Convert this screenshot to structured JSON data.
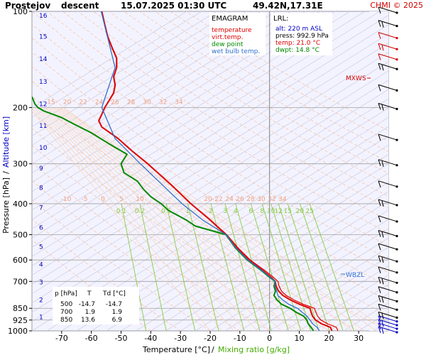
{
  "header": {
    "station": "Prostejov",
    "mode": "descent",
    "datetime": "15.07.2025 01:30 UTC",
    "coords": "49.42N,17.31E",
    "copyright": "CHMI © 2025"
  },
  "legend": {
    "title": "EMAGRAM",
    "items": [
      {
        "label": "temperature",
        "color": "#e00000"
      },
      {
        "label": "virt.temp.",
        "color": "#e00000"
      },
      {
        "label": "dew point",
        "color": "#008800"
      },
      {
        "label": "wet bulb temp.",
        "color": "#3070d0"
      }
    ]
  },
  "lrl": {
    "title": "LRL:",
    "alt": "alt: 220 m ASL",
    "press": "press: 992.9 hPa",
    "temp": "temp: 21.0 °C",
    "dwpt": "dwpt: 14.8 °C"
  },
  "level_table": {
    "headers": [
      "p [hPa]",
      "T",
      "Td [°C]"
    ],
    "rows": [
      [
        "500",
        "-14.7",
        "-14.7"
      ],
      [
        "700",
        "1.9",
        "1.9"
      ],
      [
        "850",
        "13.6",
        "6.9"
      ]
    ]
  },
  "markers": {
    "mxws": "MXWS",
    "wbzl": "WBZL"
  },
  "chart_data": {
    "type": "line",
    "title": "Prostejov descent 15.07.2025 01:30 UTC 49.42N,17.31E",
    "xlabel": "Temperature [°C]",
    "xlabel2": "Mixing ratio [g/kg]",
    "ylabel": "Pressure [hPa]",
    "ylabel2": "Altitude [km]",
    "xlim": [
      -80,
      40
    ],
    "ylim": [
      1000,
      100
    ],
    "y_scale": "log",
    "x_ticks": [
      -70,
      -60,
      -50,
      -40,
      -30,
      -20,
      -10,
      0,
      10,
      20,
      30
    ],
    "p_ticks": [
      100,
      200,
      300,
      400,
      500,
      600,
      700,
      850,
      925,
      1000
    ],
    "altitude_ticks": [
      {
        "km": 1,
        "p": 905
      },
      {
        "km": 2,
        "p": 800
      },
      {
        "km": 3,
        "p": 705
      },
      {
        "km": 4,
        "p": 620
      },
      {
        "km": 5,
        "p": 545
      },
      {
        "km": 6,
        "p": 475
      },
      {
        "km": 7,
        "p": 412
      },
      {
        "km": 8,
        "p": 357
      },
      {
        "km": 9,
        "p": 310
      },
      {
        "km": 10,
        "p": 267
      },
      {
        "km": 11,
        "p": 228
      },
      {
        "km": 12,
        "p": 195
      },
      {
        "km": 13,
        "p": 166
      },
      {
        "km": 14,
        "p": 141
      },
      {
        "km": 15,
        "p": 120
      },
      {
        "km": 16,
        "p": 103
      }
    ],
    "dry_adiabat_labels": [
      {
        "label": "15",
        "p": 195
      },
      {
        "label": "20",
        "p": 195
      },
      {
        "label": "22",
        "p": 195
      },
      {
        "label": "24",
        "p": 195
      },
      {
        "label": "26",
        "p": 195
      },
      {
        "label": "28",
        "p": 195
      },
      {
        "label": "30",
        "p": 195
      },
      {
        "label": "32",
        "p": 195
      },
      {
        "label": "34",
        "p": 195
      }
    ],
    "wet_adiabat_labels": [
      "-10",
      "-5",
      "0",
      "5",
      "10",
      "20",
      "22",
      "24",
      "26",
      "28",
      "30",
      "32",
      "34"
    ],
    "mixing_ratio_labels": [
      "0.1",
      "0.2",
      "0.5",
      "1",
      "2",
      "3",
      "4",
      "6",
      "8",
      "10",
      "12",
      "15",
      "20",
      "25"
    ],
    "mixing_ratio_values": [
      0.1,
      0.2,
      0.5,
      1,
      2,
      3,
      4,
      6,
      8,
      10,
      12,
      15,
      20,
      25
    ],
    "series": [
      {
        "name": "temperature",
        "color": "#e00000",
        "points": [
          [
            1000,
            21.0
          ],
          [
            975,
            20.5
          ],
          [
            950,
            17.5
          ],
          [
            925,
            15.5
          ],
          [
            900,
            14.5
          ],
          [
            875,
            14.0
          ],
          [
            850,
            13.6
          ],
          [
            825,
            10.0
          ],
          [
            800,
            7.0
          ],
          [
            775,
            4.5
          ],
          [
            750,
            3.0
          ],
          [
            725,
            2.2
          ],
          [
            700,
            1.9
          ],
          [
            680,
            0.5
          ],
          [
            650,
            -2.0
          ],
          [
            600,
            -7.0
          ],
          [
            550,
            -11.0
          ],
          [
            500,
            -14.7
          ],
          [
            450,
            -20.0
          ],
          [
            400,
            -26.5
          ],
          [
            350,
            -33.0
          ],
          [
            300,
            -41.0
          ],
          [
            275,
            -46.0
          ],
          [
            250,
            -51.0
          ],
          [
            230,
            -56.5
          ],
          [
            220,
            -57.5
          ],
          [
            210,
            -56.5
          ],
          [
            200,
            -55.5
          ],
          [
            190,
            -54.0
          ],
          [
            180,
            -52.5
          ],
          [
            170,
            -52.0
          ],
          [
            160,
            -52.5
          ],
          [
            150,
            -51.5
          ],
          [
            140,
            -51.5
          ],
          [
            130,
            -53.0
          ],
          [
            120,
            -54.5
          ],
          [
            110,
            -55.5
          ],
          [
            100,
            -56.5
          ]
        ]
      },
      {
        "name": "virt.temp.",
        "color": "#e00000",
        "points": [
          [
            1000,
            23.0
          ],
          [
            975,
            22.5
          ],
          [
            950,
            19.5
          ],
          [
            925,
            17.3
          ],
          [
            900,
            16.2
          ],
          [
            875,
            15.6
          ],
          [
            850,
            15.1
          ],
          [
            825,
            11.3
          ],
          [
            800,
            8.2
          ],
          [
            775,
            5.6
          ],
          [
            750,
            4.0
          ],
          [
            725,
            3.2
          ],
          [
            700,
            2.8
          ],
          [
            680,
            1.3
          ],
          [
            650,
            -1.3
          ],
          [
            600,
            -6.5
          ],
          [
            550,
            -10.6
          ],
          [
            500,
            -14.4
          ],
          [
            450,
            -19.8
          ],
          [
            400,
            -26.4
          ],
          [
            350,
            -32.9
          ],
          [
            300,
            -40.9
          ],
          [
            275,
            -45.9
          ],
          [
            250,
            -50.9
          ],
          [
            230,
            -56.4
          ],
          [
            220,
            -57.4
          ],
          [
            210,
            -56.4
          ],
          [
            200,
            -55.4
          ],
          [
            190,
            -53.9
          ],
          [
            180,
            -52.4
          ],
          [
            170,
            -51.9
          ],
          [
            160,
            -52.4
          ],
          [
            150,
            -51.4
          ],
          [
            140,
            -51.4
          ],
          [
            130,
            -52.9
          ],
          [
            120,
            -54.4
          ],
          [
            110,
            -55.4
          ],
          [
            100,
            -56.4
          ]
        ]
      },
      {
        "name": "dew point",
        "color": "#008800",
        "points": [
          [
            1000,
            14.8
          ],
          [
            975,
            14.0
          ],
          [
            950,
            13.0
          ],
          [
            925,
            12.5
          ],
          [
            900,
            11.5
          ],
          [
            875,
            9.0
          ],
          [
            850,
            6.9
          ],
          [
            825,
            4.0
          ],
          [
            800,
            2.5
          ],
          [
            775,
            1.5
          ],
          [
            750,
            2.0
          ],
          [
            725,
            1.5
          ],
          [
            700,
            1.9
          ],
          [
            680,
            0.0
          ],
          [
            650,
            -2.5
          ],
          [
            600,
            -7.5
          ],
          [
            550,
            -11.5
          ],
          [
            500,
            -14.7
          ],
          [
            470,
            -25.0
          ],
          [
            450,
            -28.0
          ],
          [
            420,
            -34.0
          ],
          [
            400,
            -36.5
          ],
          [
            380,
            -40.0
          ],
          [
            360,
            -42.5
          ],
          [
            340,
            -44.5
          ],
          [
            320,
            -49.0
          ],
          [
            300,
            -50.0
          ],
          [
            280,
            -48.0
          ],
          [
            260,
            -54.0
          ],
          [
            240,
            -60.0
          ],
          [
            225,
            -66.0
          ],
          [
            215,
            -70.0
          ],
          [
            205,
            -76.0
          ],
          [
            200,
            -78.0
          ],
          [
            195,
            -79.0
          ],
          [
            185,
            -80.0
          ]
        ]
      },
      {
        "name": "wet bulb temp.",
        "color": "#3070d0",
        "points": [
          [
            1000,
            16.8
          ],
          [
            975,
            16.0
          ],
          [
            950,
            14.5
          ],
          [
            925,
            13.6
          ],
          [
            900,
            12.6
          ],
          [
            875,
            11.0
          ],
          [
            850,
            9.4
          ],
          [
            825,
            6.4
          ],
          [
            800,
            4.4
          ],
          [
            775,
            2.8
          ],
          [
            750,
            2.4
          ],
          [
            725,
            1.8
          ],
          [
            700,
            1.9
          ],
          [
            680,
            0.2
          ],
          [
            650,
            -2.3
          ],
          [
            600,
            -7.3
          ],
          [
            550,
            -11.3
          ],
          [
            500,
            -14.7
          ],
          [
            450,
            -22.5
          ],
          [
            400,
            -29.5
          ],
          [
            350,
            -36.0
          ],
          [
            300,
            -43.5
          ],
          [
            250,
            -52.0
          ],
          [
            200,
            -56.5
          ],
          [
            150,
            -52.0
          ],
          [
            100,
            -56.7
          ]
        ]
      }
    ],
    "wind_barbs_p": [
      1000,
      975,
      950,
      925,
      900,
      850,
      800,
      750,
      700,
      650,
      600,
      550,
      500,
      450,
      400,
      350,
      300,
      250,
      200,
      175,
      150,
      140,
      130,
      120,
      110,
      100
    ]
  }
}
